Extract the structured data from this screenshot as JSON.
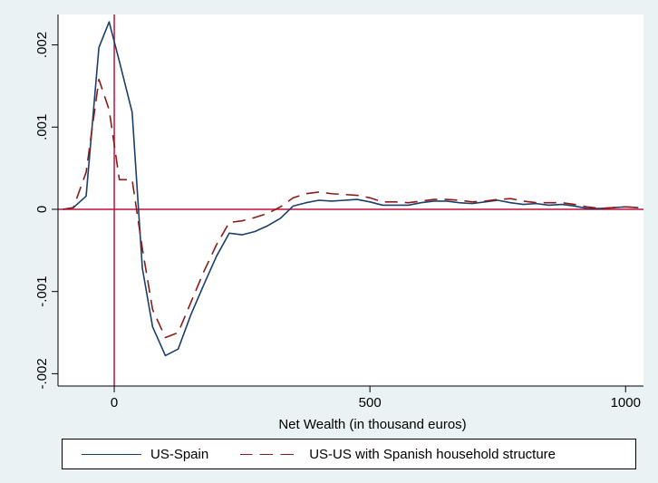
{
  "chart_data": {
    "type": "line",
    "xlabel": "Net Wealth (in thousand euros)",
    "ylabel": "",
    "xlim": [
      -110,
      1035
    ],
    "ylim": [
      -0.00215,
      0.00237
    ],
    "xticks": [
      {
        "value": 0,
        "label": "0"
      },
      {
        "value": 500,
        "label": "500"
      },
      {
        "value": 1000,
        "label": "1000"
      }
    ],
    "yticks": [
      {
        "value": -0.002,
        "label": "-.002"
      },
      {
        "value": -0.001,
        "label": "-.001"
      },
      {
        "value": 0,
        "label": "0"
      },
      {
        "value": 0.001,
        "label": ".001"
      },
      {
        "value": 0.002,
        "label": ".002"
      }
    ],
    "reference_lines": {
      "x": 0,
      "y": 0,
      "color": "#c0143c"
    },
    "grid": false,
    "legend_position": "bottom",
    "series": [
      {
        "name": "US-Spain",
        "color": "#1a3f6b",
        "dash": "solid",
        "x": [
          -100,
          -80,
          -55,
          -30,
          -10,
          10,
          35,
          55,
          75,
          100,
          125,
          150,
          175,
          200,
          225,
          250,
          275,
          300,
          325,
          350,
          375,
          400,
          425,
          450,
          475,
          500,
          525,
          550,
          575,
          600,
          625,
          650,
          675,
          700,
          725,
          750,
          775,
          800,
          825,
          850,
          875,
          900,
          925,
          950,
          975,
          1000,
          1025
        ],
        "y": [
          0.0,
          2e-05,
          0.00016,
          0.00197,
          0.00228,
          0.0018,
          0.00118,
          -0.00072,
          -0.00143,
          -0.00178,
          -0.0017,
          -0.00128,
          -0.00092,
          -0.00057,
          -0.00029,
          -0.00031,
          -0.00027,
          -0.0002,
          -0.00011,
          4e-05,
          8e-05,
          0.00011,
          0.0001,
          0.00011,
          0.00012,
          9e-05,
          5e-05,
          5e-05,
          5e-05,
          8e-05,
          0.0001,
          0.0001,
          8e-05,
          7e-05,
          9e-05,
          0.00011,
          8e-05,
          6e-05,
          7e-05,
          5e-05,
          6e-05,
          4e-05,
          1e-05,
          1e-05,
          2e-05,
          3e-05,
          2e-05
        ]
      },
      {
        "name": "US-US with Spanish household structure",
        "color": "#8b1a1a",
        "dash": "long-dash",
        "x": [
          -100,
          -80,
          -55,
          -30,
          -10,
          10,
          35,
          55,
          75,
          100,
          125,
          150,
          175,
          200,
          225,
          250,
          275,
          300,
          325,
          350,
          375,
          400,
          425,
          450,
          475,
          500,
          525,
          550,
          575,
          600,
          625,
          650,
          675,
          700,
          725,
          750,
          775,
          800,
          825,
          850,
          875,
          900,
          925,
          950,
          975,
          1000,
          1025
        ],
        "y": [
          0.0,
          2e-05,
          0.00045,
          0.00158,
          0.00121,
          0.00036,
          0.00036,
          -0.00048,
          -0.00122,
          -0.00156,
          -0.0015,
          -0.00113,
          -0.00076,
          -0.00043,
          -0.00016,
          -0.00014,
          -0.0001,
          -5e-05,
          3e-05,
          0.00014,
          0.00019,
          0.00021,
          0.00019,
          0.00018,
          0.00017,
          0.00014,
          9e-05,
          9e-05,
          8e-05,
          0.0001,
          0.00012,
          0.00012,
          0.00011,
          9e-05,
          0.0001,
          0.00012,
          0.00013,
          0.0001,
          8e-05,
          8e-05,
          8e-05,
          6e-05,
          3e-05,
          1e-05,
          2e-05,
          3e-05,
          2e-05
        ]
      }
    ]
  }
}
